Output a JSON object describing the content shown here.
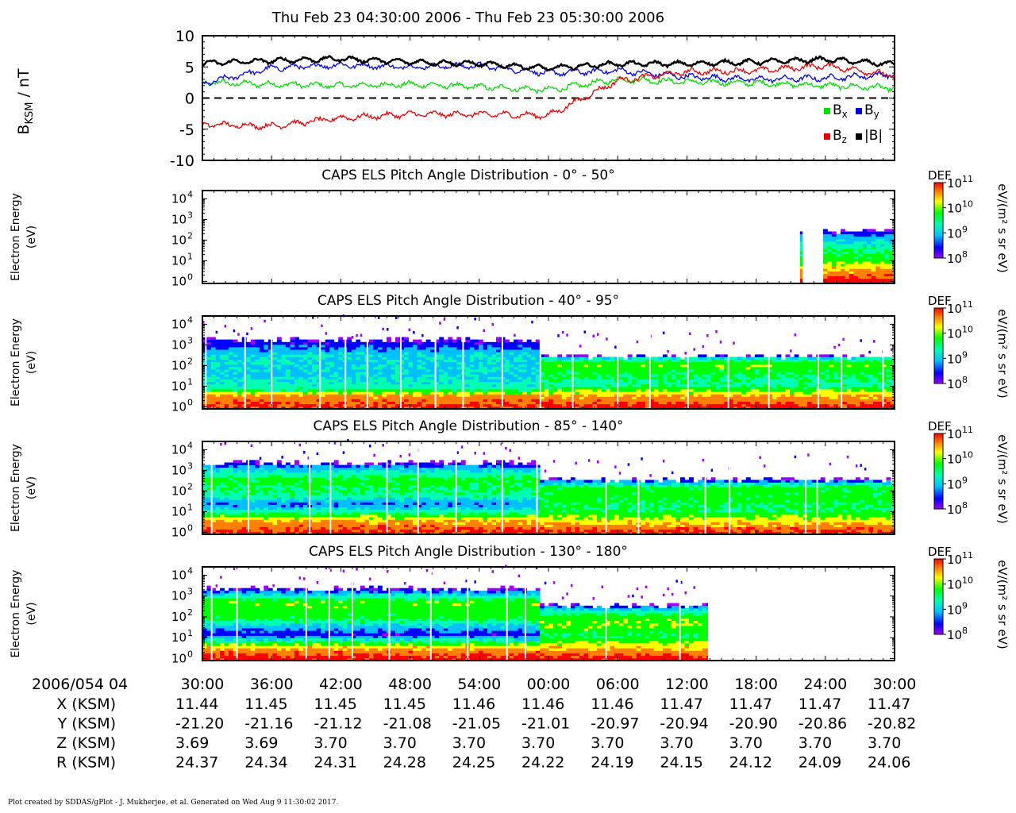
{
  "title": "Thu Feb 23 04:30:00 2006 - Thu Feb 23 05:30:00 2006",
  "footer": "Plot created by SDDAS/gPlot - J. Mukherjee, et al.  Generated on Wed Aug 9 11:30:02 2017.",
  "colors": {
    "bx": "#00e000",
    "by": "#0000ee",
    "bz": "#ee0000",
    "btot": "#000000",
    "colorbar": [
      "#a000ff",
      "#0000ff",
      "#00c0ff",
      "#00ffb0",
      "#00ff00",
      "#ffff00",
      "#ff8000",
      "#ff0000"
    ]
  },
  "chart_data": [
    {
      "type": "line",
      "ylabel": "B",
      "ylabel_sub": "KSM",
      "ylabel_unit": " / nT",
      "ylim": [
        -10,
        10
      ],
      "yticks": [
        "10",
        "5",
        "0",
        "-5",
        "-10"
      ],
      "ytick_values": [
        10,
        5,
        0,
        -5,
        -10
      ],
      "zero_line": "dashed",
      "x_minutes": [
        0,
        6,
        12,
        18,
        24,
        30,
        36,
        42,
        48,
        54,
        60
      ],
      "series": [
        {
          "name": "B",
          "sub": "x",
          "color_key": "bx",
          "values": [
            2.5,
            2.2,
            2.0,
            2.2,
            1.8,
            1.3,
            3.0,
            2.6,
            2.4,
            2.0,
            1.6
          ]
        },
        {
          "name": "B",
          "sub": "y",
          "color_key": "by",
          "values": [
            2.3,
            4.8,
            5.3,
            5.0,
            5.2,
            4.0,
            4.4,
            3.4,
            3.0,
            3.2,
            3.8
          ]
        },
        {
          "name": "B",
          "sub": "z",
          "color_key": "bz",
          "values": [
            -4.2,
            -4.5,
            -3.2,
            -2.6,
            -2.6,
            -2.8,
            2.8,
            4.2,
            4.4,
            5.2,
            3.6
          ]
        },
        {
          "name": "|B|",
          "sub": "",
          "color_key": "btot",
          "values": [
            5.6,
            6.0,
            6.3,
            5.8,
            5.5,
            4.8,
            5.5,
            5.5,
            5.8,
            6.2,
            5.4
          ]
        }
      ]
    },
    {
      "type": "heatmap",
      "title": "CAPS ELS Pitch Angle Distribution - 0° - 50°",
      "ylabel": "Electron Energy",
      "yunit": "(eV)",
      "yticks": [
        "10",
        "10",
        "10",
        "10",
        "10"
      ],
      "ytick_exponents": [
        "4",
        "3",
        "2",
        "1",
        "0"
      ],
      "ylim_log10": [
        -0.1,
        4.4
      ],
      "colorbar": {
        "label": "DEF",
        "unit": "eV/(m² s sr eV)",
        "ticks": [
          "10",
          "10",
          "10",
          "10"
        ],
        "exponents": [
          "11",
          "10",
          "9",
          "8"
        ]
      },
      "coverage_minutes": [
        [
          51.8,
          52.0
        ],
        [
          53.8,
          60.0
        ]
      ],
      "top_log10": 2.4,
      "level_profile": [
        [
          0.0,
          0.95
        ],
        [
          0.5,
          0.75
        ],
        [
          1.0,
          0.55
        ],
        [
          1.6,
          0.45
        ],
        [
          2.1,
          0.3
        ],
        [
          2.4,
          0.1
        ]
      ]
    },
    {
      "type": "heatmap",
      "title": "CAPS ELS Pitch Angle Distribution - 40° - 95°",
      "ylabel": "Electron Energy",
      "yunit": "(eV)",
      "yticks": [
        "10",
        "10",
        "10",
        "10",
        "10"
      ],
      "ytick_exponents": [
        "4",
        "3",
        "2",
        "1",
        "0"
      ],
      "ylim_log10": [
        -0.1,
        4.4
      ],
      "colorbar": {
        "label": "DEF",
        "unit": "eV/(m² s sr eV)",
        "ticks": [
          "10",
          "10",
          "10",
          "10"
        ],
        "exponents": [
          "11",
          "10",
          "9",
          "8"
        ]
      },
      "coverage_minutes": [
        [
          0,
          60
        ]
      ],
      "top_log10_before": 3.2,
      "top_log10_after": 2.4,
      "transition_minute": 29,
      "level_profile_before": [
        [
          0.0,
          0.9
        ],
        [
          0.5,
          0.78
        ],
        [
          0.8,
          0.45
        ],
        [
          1.5,
          0.35
        ],
        [
          2.4,
          0.38
        ],
        [
          3.0,
          0.18
        ],
        [
          3.2,
          0.1
        ]
      ],
      "level_profile_after": [
        [
          0.0,
          0.92
        ],
        [
          0.5,
          0.75
        ],
        [
          1.0,
          0.45
        ],
        [
          1.5,
          0.52
        ],
        [
          2.0,
          0.6
        ],
        [
          2.3,
          0.4
        ],
        [
          2.4,
          0.1
        ]
      ],
      "gap_minutes": [
        0.3,
        3.7,
        6.0,
        10.2,
        12.4,
        14.3,
        17.2,
        20.2,
        22.6,
        26.0,
        29.3,
        32.1,
        36.0,
        38.8,
        42.1,
        45.6,
        49.1,
        53.4,
        55.4,
        59.0
      ]
    },
    {
      "type": "heatmap",
      "title": "CAPS ELS Pitch Angle Distribution - 85° - 140°",
      "ylabel": "Electron Energy",
      "yunit": "(eV)",
      "yticks": [
        "10",
        "10",
        "10",
        "10",
        "10"
      ],
      "ytick_exponents": [
        "4",
        "3",
        "2",
        "1",
        "0"
      ],
      "ylim_log10": [
        -0.1,
        4.4
      ],
      "colorbar": {
        "label": "DEF",
        "unit": "eV/(m² s sr eV)",
        "ticks": [
          "10",
          "10",
          "10",
          "10"
        ],
        "exponents": [
          "11",
          "10",
          "9",
          "8"
        ]
      },
      "coverage_minutes": [
        [
          0,
          60
        ]
      ],
      "top_log10_before": 3.3,
      "top_log10_after": 2.5,
      "transition_minute": 29,
      "level_profile_before": [
        [
          0.0,
          0.9
        ],
        [
          0.5,
          0.75
        ],
        [
          0.9,
          0.48
        ],
        [
          1.3,
          0.25
        ],
        [
          1.7,
          0.45
        ],
        [
          2.5,
          0.55
        ],
        [
          3.1,
          0.3
        ],
        [
          3.3,
          0.1
        ]
      ],
      "level_profile_after": [
        [
          0.0,
          0.9
        ],
        [
          0.5,
          0.7
        ],
        [
          1.0,
          0.5
        ],
        [
          1.6,
          0.55
        ],
        [
          2.1,
          0.55
        ],
        [
          2.4,
          0.3
        ],
        [
          2.5,
          0.1
        ]
      ],
      "gap_minutes": [
        0.8,
        4.0,
        9.3,
        11.1,
        16.0,
        18.7,
        22.0,
        26.0,
        29.0,
        35.0,
        37.8,
        43.6,
        45.7,
        52.3,
        53.3
      ]
    },
    {
      "type": "heatmap",
      "title": "CAPS ELS Pitch Angle Distribution - 130° - 180°",
      "ylabel": "Electron Energy",
      "yunit": "(eV)",
      "yticks": [
        "10",
        "10",
        "10",
        "10",
        "10"
      ],
      "ytick_exponents": [
        "4",
        "3",
        "2",
        "1",
        "0"
      ],
      "ylim_log10": [
        -0.1,
        4.4
      ],
      "colorbar": {
        "label": "DEF",
        "unit": "eV/(m² s sr eV)",
        "ticks": [
          "10",
          "10",
          "10",
          "10"
        ],
        "exponents": [
          "11",
          "10",
          "9",
          "8"
        ]
      },
      "coverage_minutes": [
        [
          0,
          43.8
        ]
      ],
      "top_log10_before": 3.3,
      "top_log10_after": 2.5,
      "transition_minute": 29,
      "level_profile_before": [
        [
          0.0,
          0.92
        ],
        [
          0.4,
          0.78
        ],
        [
          0.8,
          0.45
        ],
        [
          1.1,
          0.18
        ],
        [
          1.4,
          0.3
        ],
        [
          1.9,
          0.55
        ],
        [
          2.7,
          0.58
        ],
        [
          3.1,
          0.3
        ],
        [
          3.3,
          0.1
        ]
      ],
      "level_profile_after": [
        [
          0.0,
          0.92
        ],
        [
          0.5,
          0.72
        ],
        [
          1.0,
          0.5
        ],
        [
          1.6,
          0.62
        ],
        [
          2.0,
          0.55
        ],
        [
          2.4,
          0.3
        ],
        [
          2.5,
          0.1
        ]
      ],
      "gap_minutes": [
        0.8,
        3.0,
        9.0,
        11.0,
        13.0,
        16.2,
        19.8,
        23.0,
        26.4,
        28.0,
        35.0,
        41.4
      ]
    }
  ],
  "time_axis": {
    "label": "2006/054 04",
    "ticks": [
      "30:00",
      "36:00",
      "42:00",
      "48:00",
      "54:00",
      "00:00",
      "06:00",
      "12:00",
      "18:00",
      "24:00",
      "30:00"
    ]
  },
  "ephemeris": [
    {
      "label": "X (KSM)",
      "values": [
        "11.44",
        "11.45",
        "11.45",
        "11.45",
        "11.46",
        "11.46",
        "11.46",
        "11.47",
        "11.47",
        "11.47",
        "11.47"
      ]
    },
    {
      "label": "Y (KSM)",
      "values": [
        "-21.20",
        "-21.16",
        "-21.12",
        "-21.08",
        "-21.05",
        "-21.01",
        "-20.97",
        "-20.94",
        "-20.90",
        "-20.86",
        "-20.82"
      ]
    },
    {
      "label": "Z (KSM)",
      "values": [
        "3.69",
        "3.69",
        "3.70",
        "3.70",
        "3.70",
        "3.70",
        "3.70",
        "3.70",
        "3.70",
        "3.70",
        "3.70"
      ]
    },
    {
      "label": "R (KSM)",
      "values": [
        "24.37",
        "24.34",
        "24.31",
        "24.28",
        "24.25",
        "24.22",
        "24.19",
        "24.15",
        "24.12",
        "24.09",
        "24.06"
      ]
    }
  ]
}
